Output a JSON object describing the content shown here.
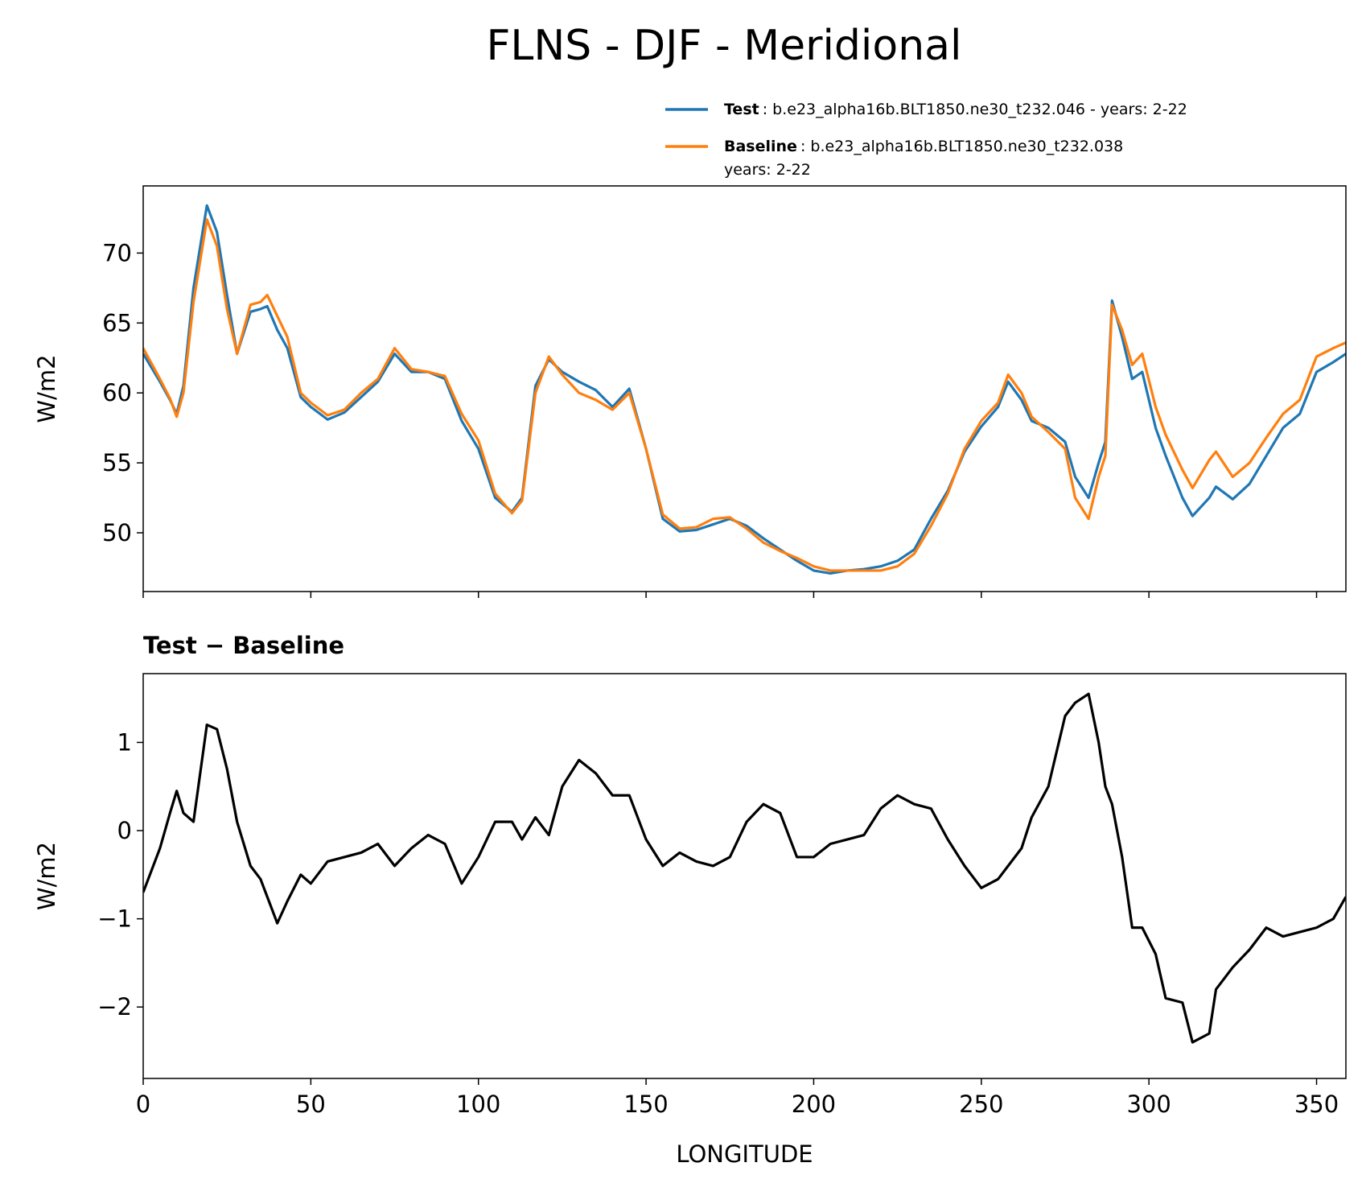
{
  "chart_data": [
    {
      "type": "line",
      "title": "FLNS - DJF - Meridional",
      "ylabel": "W/m2",
      "x": [
        0,
        5,
        8,
        10,
        12,
        15,
        19,
        22,
        25,
        28,
        32,
        35,
        37,
        40,
        43,
        47,
        50,
        55,
        60,
        65,
        70,
        75,
        80,
        85,
        90,
        95,
        100,
        105,
        110,
        113,
        117,
        121,
        125,
        130,
        135,
        140,
        145,
        150,
        155,
        160,
        165,
        170,
        175,
        180,
        185,
        190,
        195,
        200,
        205,
        210,
        215,
        220,
        225,
        230,
        235,
        240,
        245,
        250,
        255,
        258,
        262,
        265,
        270,
        275,
        278,
        282,
        285,
        287,
        289,
        292,
        295,
        298,
        302,
        305,
        310,
        313,
        318,
        320,
        325,
        330,
        335,
        340,
        345,
        350,
        355,
        358.75
      ],
      "series": [
        {
          "name": "Test",
          "description": [
            ": b.e23_alpha16b.BLT1850.ne30_t232.046 - years: 2-22"
          ],
          "color": "#1f77b4",
          "values": [
            62.8,
            60.8,
            59.5,
            58.5,
            60.5,
            67.5,
            73.4,
            71.5,
            67,
            62.8,
            65.8,
            66,
            66.2,
            64.5,
            63.2,
            59.7,
            59,
            58.1,
            58.6,
            59.7,
            60.8,
            62.8,
            61.5,
            61.5,
            61,
            58,
            56,
            52.5,
            51.5,
            52.5,
            60.5,
            62.4,
            61.5,
            60.8,
            60.2,
            59,
            60.3,
            56,
            51,
            50.1,
            50.2,
            50.6,
            51,
            50.5,
            49.6,
            48.8,
            48,
            47.3,
            47.1,
            47.3,
            47.4,
            47.6,
            48,
            48.8,
            51,
            53,
            55.8,
            57.6,
            59,
            60.8,
            59.5,
            58,
            57.5,
            56.5,
            54,
            52.5,
            55,
            56.5,
            66.6,
            64,
            61,
            61.5,
            57.5,
            55.5,
            52.5,
            51.2,
            52.5,
            53.3,
            52.4,
            53.5,
            55.5,
            57.5,
            58.5,
            61.5,
            62.2,
            62.8
          ]
        },
        {
          "name": "Baseline",
          "description": [
            ": b.e23_alpha16b.BLT1850.ne30_t232.038",
            "years: 2-22"
          ],
          "color": "#ff7f0e",
          "values": [
            63.2,
            61,
            59.6,
            58.3,
            60,
            66.5,
            72.4,
            70.5,
            66,
            62.8,
            66.3,
            66.5,
            67,
            65.5,
            64,
            60,
            59.3,
            58.4,
            58.8,
            60,
            61,
            63.2,
            61.7,
            61.5,
            61.2,
            58.5,
            56.6,
            52.8,
            51.4,
            52.3,
            60,
            62.6,
            61.3,
            60,
            59.5,
            58.8,
            60,
            56,
            51.3,
            50.3,
            50.4,
            51,
            51.1,
            50.3,
            49.3,
            48.7,
            48.2,
            47.6,
            47.3,
            47.3,
            47.3,
            47.3,
            47.6,
            48.5,
            50.5,
            52.8,
            56,
            58,
            59.3,
            61.3,
            60,
            58.3,
            57.2,
            56,
            52.5,
            51,
            54,
            55.5,
            66.3,
            64.5,
            62,
            62.8,
            59,
            57,
            54.5,
            53.2,
            55.2,
            55.8,
            54,
            55,
            56.8,
            58.5,
            59.5,
            62.6,
            63.2,
            63.6
          ]
        }
      ],
      "xlim": [
        0,
        358.75
      ],
      "xticks": [
        0,
        50,
        100,
        150,
        200,
        250,
        300,
        350
      ],
      "xtick_labels": false,
      "ylim": [
        45.8,
        74.8
      ],
      "yticks": [
        50,
        55,
        60,
        65,
        70
      ]
    },
    {
      "type": "line",
      "title": "Test − Baseline",
      "ylabel": "W/m2",
      "xlabel": "LONGITUDE",
      "x": [
        0,
        5,
        8,
        10,
        12,
        15,
        19,
        22,
        25,
        28,
        32,
        35,
        37,
        40,
        43,
        47,
        50,
        55,
        60,
        65,
        70,
        75,
        80,
        85,
        90,
        95,
        100,
        105,
        110,
        113,
        117,
        121,
        125,
        130,
        135,
        140,
        145,
        150,
        155,
        160,
        165,
        170,
        175,
        180,
        185,
        190,
        195,
        200,
        205,
        210,
        215,
        220,
        225,
        230,
        235,
        240,
        245,
        250,
        255,
        258,
        262,
        265,
        270,
        275,
        278,
        282,
        285,
        287,
        289,
        292,
        295,
        298,
        302,
        305,
        310,
        313,
        318,
        320,
        325,
        330,
        335,
        340,
        345,
        350,
        355,
        358.75
      ],
      "series": [
        {
          "color": "#000000",
          "values": [
            -0.7,
            -0.2,
            0.2,
            0.45,
            0.2,
            0.1,
            1.2,
            1.15,
            0.7,
            0.1,
            -0.4,
            -0.55,
            -0.75,
            -1.05,
            -0.8,
            -0.5,
            -0.6,
            -0.35,
            -0.3,
            -0.25,
            -0.15,
            -0.4,
            -0.2,
            -0.05,
            -0.15,
            -0.6,
            -0.3,
            0.1,
            0.1,
            -0.1,
            0.15,
            -0.05,
            0.5,
            0.8,
            0.65,
            0.4,
            0.4,
            -0.1,
            -0.4,
            -0.25,
            -0.35,
            -0.4,
            -0.3,
            0.1,
            0.3,
            0.2,
            -0.3,
            -0.3,
            -0.15,
            -0.1,
            -0.05,
            0.25,
            0.4,
            0.3,
            0.25,
            -0.1,
            -0.4,
            -0.65,
            -0.55,
            -0.4,
            -0.2,
            0.15,
            0.5,
            1.3,
            1.45,
            1.55,
            1.0,
            0.5,
            0.3,
            -0.3,
            -1.1,
            -1.1,
            -1.4,
            -1.9,
            -1.95,
            -2.4,
            -2.3,
            -1.8,
            -1.55,
            -1.35,
            -1.1,
            -1.2,
            -1.15,
            -1.1,
            -1.0,
            -0.75
          ]
        }
      ],
      "xlim": [
        0,
        358.75
      ],
      "xticks": [
        0,
        50,
        100,
        150,
        200,
        250,
        300,
        350
      ],
      "xtick_labels": true,
      "ylim": [
        -2.81,
        1.78
      ],
      "yticks": [
        {
          "value": -2,
          "label": "−2"
        },
        {
          "value": -1,
          "label": "−1"
        },
        0,
        1
      ]
    }
  ]
}
